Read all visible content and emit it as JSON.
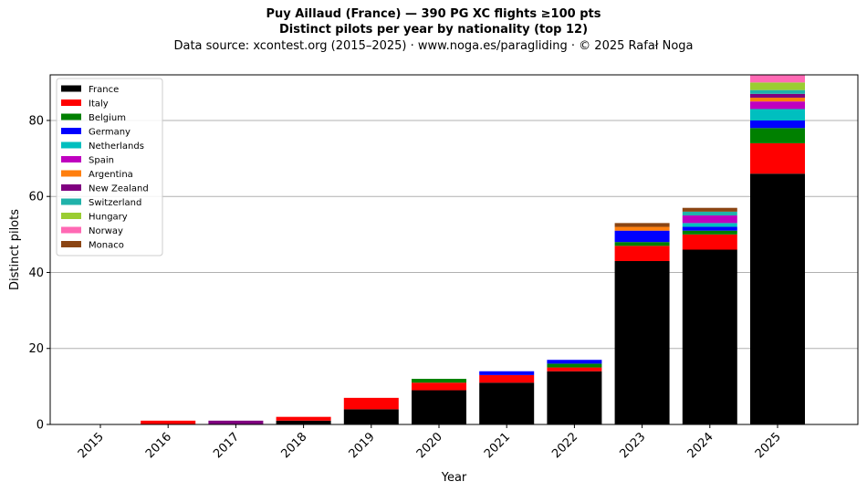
{
  "header": {
    "title": "Puy Aillaud (France)  —  390 PG XC flights ≥100 pts",
    "subtitle": "Distinct pilots per year by nationality (top 12)",
    "source": "Data source: xcontest.org (2015–2025)  ·  www.noga.es/paragliding  ·  © 2025 Rafał Noga"
  },
  "chart_data": {
    "type": "bar",
    "stacked": true,
    "title": "Puy Aillaud (France)  —  390 PG XC flights ≥100 pts",
    "subtitle": "Distinct pilots per year by nationality (top 12)",
    "xlabel": "Year",
    "ylabel": "Distinct pilots",
    "ylim": [
      0,
      92
    ],
    "yticks": [
      0,
      20,
      40,
      60,
      80
    ],
    "grid": "y",
    "legend_position": "top-left",
    "categories": [
      "2015",
      "2016",
      "2017",
      "2018",
      "2019",
      "2020",
      "2021",
      "2022",
      "2023",
      "2024",
      "2025"
    ],
    "series": [
      {
        "name": "France",
        "color": "#000000",
        "values": [
          0,
          0,
          0,
          1,
          4,
          9,
          11,
          14,
          43,
          46,
          66
        ]
      },
      {
        "name": "Italy",
        "color": "#ff0000",
        "values": [
          0,
          1,
          0,
          1,
          3,
          2,
          2,
          1,
          4,
          4,
          8
        ]
      },
      {
        "name": "Belgium",
        "color": "#008000",
        "values": [
          0,
          0,
          0,
          0,
          0,
          1,
          0,
          1,
          1,
          1,
          4
        ]
      },
      {
        "name": "Germany",
        "color": "#0000ff",
        "values": [
          0,
          0,
          0,
          0,
          0,
          0,
          1,
          1,
          3,
          1,
          2
        ]
      },
      {
        "name": "Netherlands",
        "color": "#00bfbf",
        "values": [
          0,
          0,
          0,
          0,
          0,
          0,
          0,
          0,
          0,
          1,
          3
        ]
      },
      {
        "name": "Spain",
        "color": "#bf00bf",
        "values": [
          0,
          0,
          0,
          0,
          0,
          0,
          0,
          0,
          0,
          2,
          2
        ]
      },
      {
        "name": "Argentina",
        "color": "#ff7f0e",
        "values": [
          0,
          0,
          0,
          0,
          0,
          0,
          0,
          0,
          1,
          0,
          1
        ]
      },
      {
        "name": "New Zealand",
        "color": "#800080",
        "values": [
          0,
          0,
          1,
          0,
          0,
          0,
          0,
          0,
          0,
          0,
          1
        ]
      },
      {
        "name": "Switzerland",
        "color": "#20b2aa",
        "values": [
          0,
          0,
          0,
          0,
          0,
          0,
          0,
          0,
          0,
          1,
          1
        ]
      },
      {
        "name": "Hungary",
        "color": "#9acd32",
        "values": [
          0,
          0,
          0,
          0,
          0,
          0,
          0,
          0,
          0,
          0,
          2
        ]
      },
      {
        "name": "Norway",
        "color": "#ff69b4",
        "values": [
          0,
          0,
          0,
          0,
          0,
          0,
          0,
          0,
          0,
          0,
          2
        ]
      },
      {
        "name": "Monaco",
        "color": "#8b4513",
        "values": [
          0,
          0,
          0,
          0,
          0,
          0,
          0,
          0,
          1,
          1,
          0
        ]
      }
    ]
  }
}
